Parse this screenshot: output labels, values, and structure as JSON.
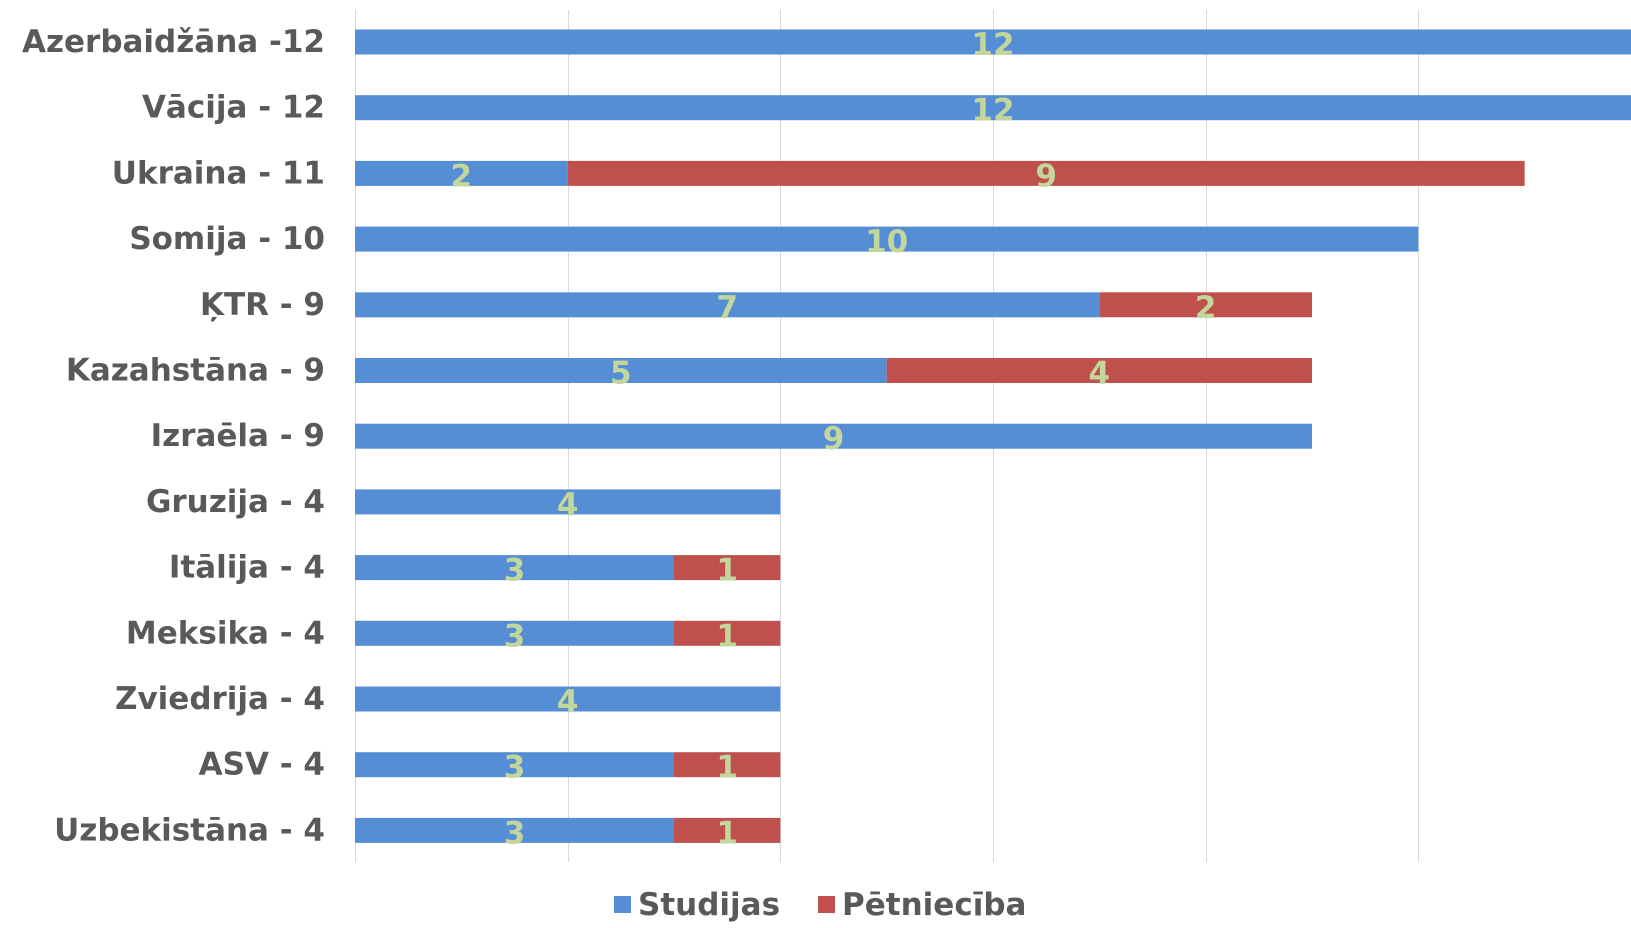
{
  "chart_data": {
    "type": "bar",
    "orientation": "horizontal",
    "stacked": true,
    "categories": [
      "Azerbaidžāna -12",
      "Vācija - 12",
      "Ukraina - 11",
      "Somija - 10",
      "ĶTR - 9",
      "Kazahstāna - 9",
      "Izraēla - 9",
      "Gruzija - 4",
      "Itālija - 4",
      "Meksika - 4",
      "Zviedrija - 4",
      "ASV - 4",
      "Uzbekistāna - 4"
    ],
    "series": [
      {
        "name": "Studijas",
        "color": "#558ed5",
        "values": [
          12,
          12,
          2,
          10,
          7,
          5,
          9,
          4,
          3,
          3,
          4,
          3,
          3
        ],
        "labels": [
          "12",
          "12",
          "2",
          "10",
          "7",
          "5",
          "9",
          "4",
          "3",
          "3",
          "4",
          "3",
          "3"
        ]
      },
      {
        "name": "Pētniecība",
        "color": "#c0504d",
        "values": [
          0,
          0,
          9,
          0,
          2,
          4,
          0,
          0,
          1,
          1,
          0,
          1,
          1
        ],
        "labels": [
          "",
          "",
          "9",
          "",
          "2",
          "4",
          "",
          "",
          "1",
          "1",
          "",
          "1",
          "1"
        ]
      }
    ],
    "xlim": [
      0,
      12
    ],
    "x_gridlines": [
      0,
      2,
      4,
      6,
      8,
      10,
      12
    ],
    "grid": true,
    "legend": "bottom",
    "data_label_color": "#c3d69b"
  }
}
